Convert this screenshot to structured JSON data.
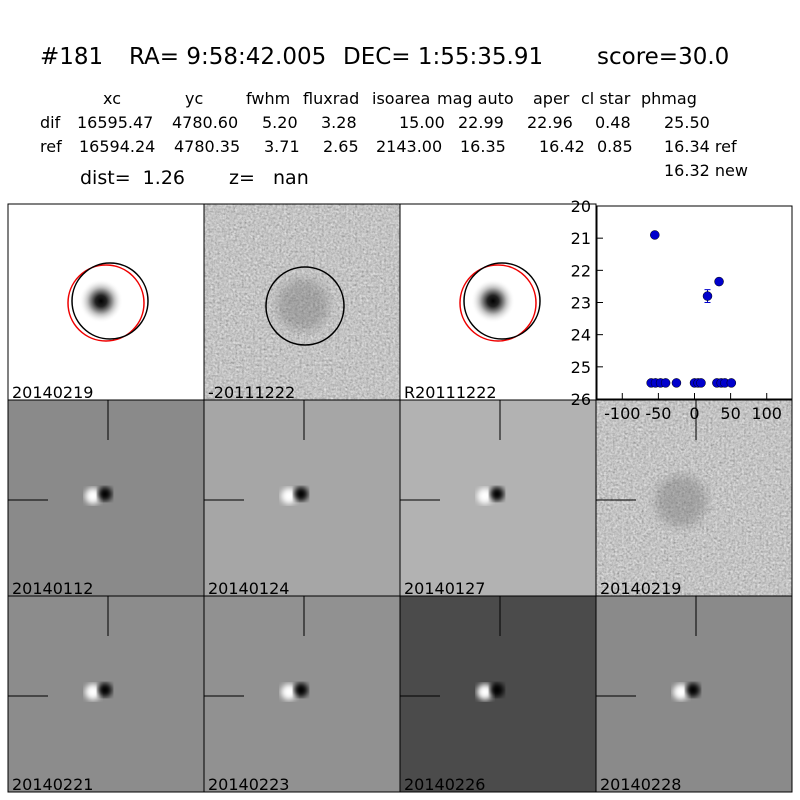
{
  "header": {
    "id": "#181",
    "ra": "RA= 9:58:42.005",
    "dec": "DEC= 1:55:35.91",
    "score": "score=30.0"
  },
  "table": {
    "columns": [
      "xc",
      "yc",
      "fwhm",
      "fluxrad",
      "isoarea",
      "mag auto",
      "aper",
      "cl star",
      "phmag"
    ],
    "rows": [
      [
        "dif",
        "16595.47",
        "4780.60",
        "5.20",
        "3.28",
        "15.00",
        "22.99",
        "22.96",
        "0.48",
        "25.50"
      ],
      [
        "ref",
        "16594.24",
        "4780.35",
        "3.71",
        "2.65",
        "2143.00",
        "16.35",
        "16.42",
        "0.85",
        "16.34 ref"
      ]
    ],
    "extra": "16.32 new",
    "dist": "dist=  1.26",
    "z": "z=   nan"
  },
  "panels": [
    {
      "label": "20140219"
    },
    {
      "label": "-20111222"
    },
    {
      "label": "R20111222"
    },
    {
      "label": "20140112"
    },
    {
      "label": "20140124"
    },
    {
      "label": "20140127"
    },
    {
      "label": "20140219",
      "color": "#ff0000"
    },
    {
      "label": "20140221"
    },
    {
      "label": "20140223"
    },
    {
      "label": "20140226"
    },
    {
      "label": "20140228"
    }
  ],
  "chart_data": {
    "type": "scatter",
    "series": [
      {
        "color": "#0000cc",
        "x": [
          -60,
          -55,
          -54,
          -47,
          -40,
          -25,
          0,
          5,
          9,
          18,
          31,
          34,
          37,
          42,
          51
        ],
        "values": [
          25.5,
          20.9,
          25.5,
          25.5,
          25.5,
          25.5,
          25.5,
          25.5,
          25.5,
          22.8,
          25.5,
          22.35,
          25.5,
          25.5,
          25.5
        ],
        "errors": [
          null,
          null,
          null,
          null,
          null,
          null,
          null,
          null,
          null,
          0.2,
          null,
          0.1,
          null,
          null,
          null
        ]
      }
    ],
    "xlim": [
      -135,
      135
    ],
    "xticks": [
      -100,
      -50,
      0,
      50,
      100
    ],
    "ylim": [
      26,
      20
    ],
    "yticks": [
      20,
      21,
      22,
      23,
      24,
      25,
      26
    ]
  }
}
